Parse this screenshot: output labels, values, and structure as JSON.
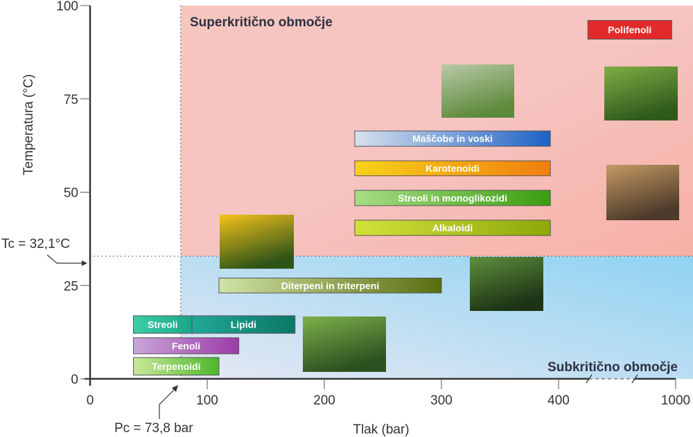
{
  "chart_data": {
    "type": "range-bar",
    "xlabel": "Tlak (bar)",
    "ylabel": "Temperatura (°C)",
    "x_ticks": [
      "0",
      "100",
      "200",
      "300",
      "400",
      "1000"
    ],
    "x_tick_values": [
      0,
      100,
      200,
      300,
      400,
      1000
    ],
    "x_axis_break": [
      400,
      1000
    ],
    "y_ticks": [
      "0",
      "25",
      "50",
      "75",
      "100"
    ],
    "y_tick_values": [
      0,
      25,
      50,
      75,
      100
    ],
    "xlim": [
      0,
      1000
    ],
    "ylim": [
      0,
      100
    ],
    "critical_point": {
      "pressure": 73.8,
      "temperature": 32.1,
      "pc_label": "Pc = 73,8 bar",
      "tc_label": "Tc = 32,1°C"
    },
    "regions": {
      "supercritical": {
        "label": "Superkritično območje",
        "color": "#f6b3ab"
      },
      "subcritical": {
        "label": "Subkritično območje",
        "color": "#96d3f0"
      }
    },
    "bars": [
      {
        "label": "Polifenoli",
        "p": [
          550,
          980
        ],
        "t": [
          91,
          96
        ],
        "colors": [
          "#e32a2a",
          "#e32a2a"
        ]
      },
      {
        "label": "Maščobe in voski",
        "p": [
          226,
          393
        ],
        "t": [
          62.3,
          66.4
        ],
        "colors": [
          "#d7e1ec",
          "#1e62c4"
        ]
      },
      {
        "label": "Karotenoidi",
        "p": [
          226,
          393
        ],
        "t": [
          54.4,
          58.4
        ],
        "colors": [
          "#f7d21a",
          "#f07e10"
        ]
      },
      {
        "label": "Streoli in monoglikozidi",
        "p": [
          226,
          393
        ],
        "t": [
          46.4,
          50.5
        ],
        "colors": [
          "#a8dd86",
          "#3b9d10"
        ]
      },
      {
        "label": "Alkaloidi",
        "p": [
          226,
          393
        ],
        "t": [
          38.4,
          42.5
        ],
        "colors": [
          "#d4e03a",
          "#8ca90a"
        ]
      },
      {
        "label": "Diterpeni in triterpeni",
        "p": [
          110,
          300
        ],
        "t": [
          23,
          27
        ],
        "colors": [
          "#cfe3a6",
          "#5a6d10"
        ]
      },
      {
        "label": "Streoli",
        "p": [
          37,
          87
        ],
        "t": [
          12.2,
          16.9
        ],
        "colors": [
          "#3dcfa5",
          "#1aa58a"
        ]
      },
      {
        "label": "Lipidi",
        "p": [
          87,
          175
        ],
        "t": [
          12.2,
          16.9
        ],
        "colors": [
          "#20a896",
          "#0c7767"
        ]
      },
      {
        "label": "Fenoli",
        "p": [
          37,
          127
        ],
        "t": [
          6.7,
          11
        ],
        "colors": [
          "#c9a6d8",
          "#9c3aa8"
        ]
      },
      {
        "label": "Terpenoidi",
        "p": [
          37,
          110
        ],
        "t": [
          1,
          5.7
        ],
        "colors": [
          "#cbe79a",
          "#4cb82a"
        ]
      }
    ],
    "photos": [
      {
        "name": "wheat-photo",
        "colors": [
          "#b9c9a8",
          "#5d8a3a"
        ]
      },
      {
        "name": "hops-photo",
        "colors": [
          "#7fae45",
          "#2f5a1c"
        ]
      },
      {
        "name": "seeds-photo",
        "colors": [
          "#c49a63",
          "#4c3a2a"
        ]
      },
      {
        "name": "st-johns-wort-photo",
        "colors": [
          "#f4c21b",
          "#2f5418"
        ]
      },
      {
        "name": "spruce-photo",
        "colors": [
          "#5e8f3c",
          "#1c3315"
        ]
      },
      {
        "name": "cannabis-photo",
        "colors": [
          "#7db04a",
          "#2c4f1f"
        ]
      }
    ]
  }
}
